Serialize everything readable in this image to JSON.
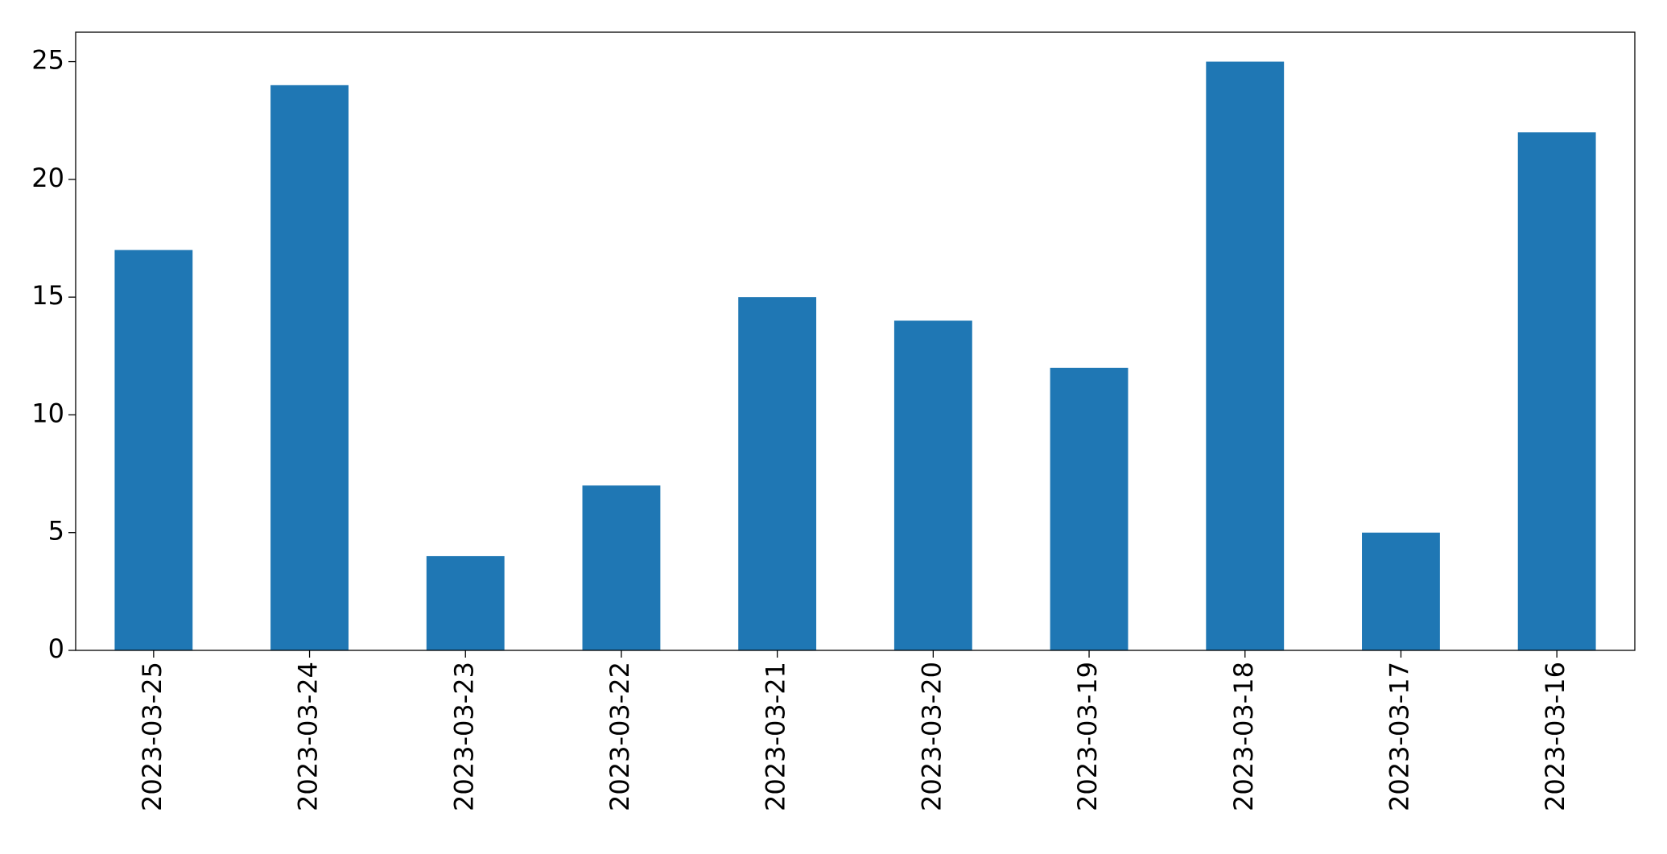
{
  "chart_data": {
    "type": "bar",
    "categories": [
      "2023-03-25",
      "2023-03-24",
      "2023-03-23",
      "2023-03-22",
      "2023-03-21",
      "2023-03-20",
      "2023-03-19",
      "2023-03-18",
      "2023-03-17",
      "2023-03-16"
    ],
    "values": [
      17,
      24,
      4,
      7,
      15,
      14,
      12,
      25,
      5,
      22
    ],
    "color": "#1f77b4",
    "ylim": [
      0,
      26.25
    ],
    "yticks": [
      0,
      5,
      10,
      15,
      20,
      25
    ],
    "grid": false
  }
}
